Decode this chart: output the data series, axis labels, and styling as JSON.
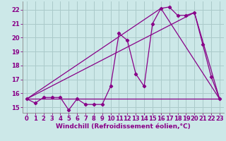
{
  "xlabel": "Windchill (Refroidissement éolien,°C)",
  "bg_color": "#cce8e8",
  "grid_color": "#aacaca",
  "line_color": "#880088",
  "xlim": [
    -0.5,
    23.5
  ],
  "ylim": [
    14.6,
    22.6
  ],
  "yticks": [
    15,
    16,
    17,
    18,
    19,
    20,
    21,
    22
  ],
  "xticks": [
    0,
    1,
    2,
    3,
    4,
    5,
    6,
    7,
    8,
    9,
    10,
    11,
    12,
    13,
    14,
    15,
    16,
    17,
    18,
    19,
    20,
    21,
    22,
    23
  ],
  "temp_line_x": [
    0,
    1,
    2,
    3,
    4,
    5,
    6,
    7,
    8,
    9,
    10,
    11,
    12,
    13,
    14,
    15,
    16,
    17,
    18,
    19,
    20,
    21,
    22,
    23
  ],
  "temp_line_y": [
    15.6,
    15.3,
    15.7,
    15.7,
    15.7,
    14.8,
    15.6,
    15.2,
    15.2,
    15.2,
    16.5,
    20.3,
    19.8,
    17.4,
    16.5,
    21.0,
    22.1,
    22.2,
    21.6,
    21.6,
    21.8,
    19.5,
    17.2,
    15.6
  ],
  "diag_line1_x": [
    0,
    23
  ],
  "diag_line1_y": [
    15.6,
    15.6
  ],
  "diag_line2_x": [
    0,
    16,
    23
  ],
  "diag_line2_y": [
    15.6,
    22.1,
    15.6
  ],
  "diag_line3_x": [
    0,
    20,
    23
  ],
  "diag_line3_y": [
    15.6,
    21.8,
    15.6
  ],
  "xlabel_fontsize": 6.5,
  "tick_fontsize": 6,
  "ylabel_fontsize": 6
}
